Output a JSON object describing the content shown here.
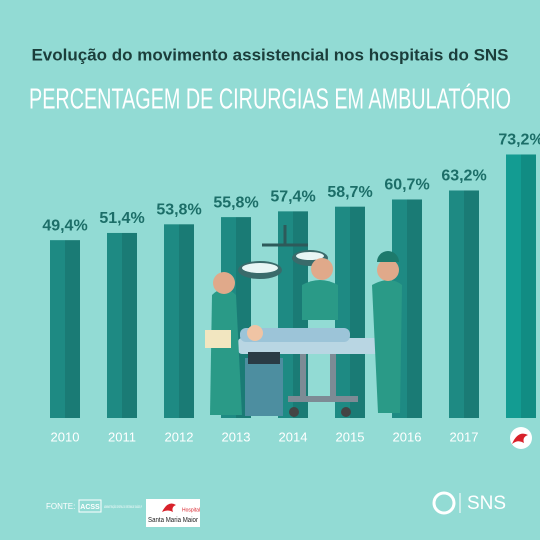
{
  "chart_data": {
    "type": "bar",
    "subtitle": "Evolução do movimento assistencial nos hospitais do SNS",
    "title": "PERCENTAGEM DE CIRURGIAS EM AMBULATÓRIO",
    "categories": [
      "2010",
      "2011",
      "2012",
      "2013",
      "2014",
      "2015",
      "2016",
      "2017",
      null
    ],
    "values": [
      49.4,
      51.4,
      53.8,
      55.8,
      57.4,
      58.7,
      60.7,
      63.2,
      73.2
    ],
    "value_labels": [
      "49,4%",
      "51,4%",
      "53,8%",
      "55,8%",
      "57,4%",
      "58,7%",
      "60,7%",
      "63,2%",
      "73,2%"
    ],
    "colors": [
      "#1e8a83",
      "#1e8a83",
      "#1e8a83",
      "#1e8a83",
      "#1e8a83",
      "#1e8a83",
      "#1e8a83",
      "#1e8a83",
      "#139c92"
    ]
  },
  "footer": {
    "source": "FONTE:",
    "acss": "ACSS",
    "acss_name": "ADMINISTRAÇÃO CENTRAL DO SISTEMA DE SAÚDE, IP",
    "hospital_small": "Hospital",
    "hospital_name": "Santa Maria Maior",
    "sns": "SNS"
  }
}
